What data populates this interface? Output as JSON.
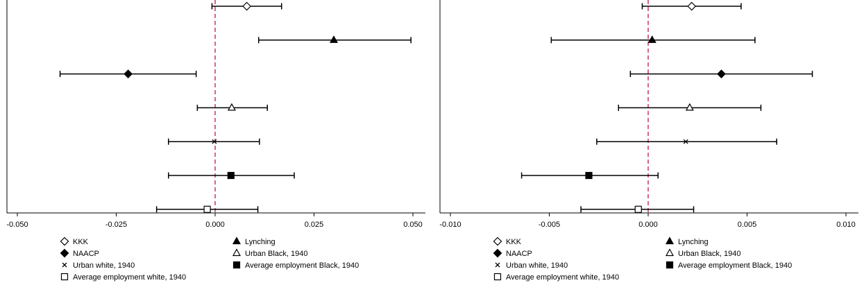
{
  "chart_data": [
    {
      "type": "scatter",
      "title": "",
      "xlabel": "",
      "ylabel": "",
      "xlim": [
        -0.05,
        0.05
      ],
      "xticks": [
        "-0.050",
        "-0.025",
        "0.000",
        "0.025",
        "0.050"
      ],
      "xtick_values": [
        -0.05,
        -0.025,
        0.0,
        0.025,
        0.05
      ],
      "reference_line": 0.0,
      "grid": false,
      "legend_position": "bottom",
      "series": [
        {
          "name": "KKK",
          "marker": "diamond-open",
          "estimate": 0.008,
          "ci": [
            -0.0008,
            0.0168
          ]
        },
        {
          "name": "Lynching",
          "marker": "triangle-filled",
          "estimate": 0.03,
          "ci": [
            0.011,
            0.0495
          ]
        },
        {
          "name": "NAACP",
          "marker": "diamond-filled",
          "estimate": -0.022,
          "ci": [
            -0.0392,
            -0.0048
          ]
        },
        {
          "name": "Urban Black, 1940",
          "marker": "triangle-open",
          "estimate": 0.0042,
          "ci": [
            -0.0045,
            0.0132
          ]
        },
        {
          "name": "Urban white, 1940",
          "marker": "x",
          "estimate": -0.0002,
          "ci": [
            -0.0118,
            0.0112
          ]
        },
        {
          "name": "Average employment Black, 1940",
          "marker": "square-filled",
          "estimate": 0.004,
          "ci": [
            -0.0118,
            0.02
          ]
        },
        {
          "name": "Average employment white, 1940",
          "marker": "square-open",
          "estimate": -0.002,
          "ci": [
            -0.0148,
            0.0108
          ]
        }
      ]
    },
    {
      "type": "scatter",
      "title": "",
      "xlabel": "",
      "ylabel": "",
      "xlim": [
        -0.01,
        0.01
      ],
      "xticks": [
        "-0.010",
        "-0.005",
        "0.000",
        "0.005",
        "0.010"
      ],
      "xtick_values": [
        -0.01,
        -0.005,
        0.0,
        0.005,
        0.01
      ],
      "reference_line": 0.0,
      "grid": false,
      "legend_position": "bottom",
      "series": [
        {
          "name": "KKK",
          "marker": "diamond-open",
          "estimate": 0.0022,
          "ci": [
            -0.0003,
            0.0047
          ]
        },
        {
          "name": "Lynching",
          "marker": "triangle-filled",
          "estimate": 0.0002,
          "ci": [
            -0.0049,
            0.0054
          ]
        },
        {
          "name": "NAACP",
          "marker": "diamond-filled",
          "estimate": 0.0037,
          "ci": [
            -0.0009,
            0.0083
          ]
        },
        {
          "name": "Urban Black, 1940",
          "marker": "triangle-open",
          "estimate": 0.0021,
          "ci": [
            -0.0015,
            0.0057
          ]
        },
        {
          "name": "Urban white, 1940",
          "marker": "x",
          "estimate": 0.0019,
          "ci": [
            -0.0026,
            0.0065
          ]
        },
        {
          "name": "Average employment Black, 1940",
          "marker": "square-filled",
          "estimate": -0.003,
          "ci": [
            -0.0064,
            0.0005
          ]
        },
        {
          "name": "Average employment white, 1940",
          "marker": "square-open",
          "estimate": -0.0005,
          "ci": [
            -0.0034,
            0.0023
          ]
        }
      ]
    }
  ],
  "legend": {
    "items": [
      {
        "name": "KKK",
        "marker": "diamond-open"
      },
      {
        "name": "Lynching",
        "marker": "triangle-filled"
      },
      {
        "name": "NAACP",
        "marker": "diamond-filled"
      },
      {
        "name": "Urban Black, 1940",
        "marker": "triangle-open"
      },
      {
        "name": "Urban white, 1940",
        "marker": "x"
      },
      {
        "name": "Average employment Black, 1940",
        "marker": "square-filled"
      },
      {
        "name": "Average employment white, 1940",
        "marker": "square-open"
      }
    ]
  },
  "colors": {
    "reference_line": "#c0134a",
    "ink": "#000000"
  }
}
